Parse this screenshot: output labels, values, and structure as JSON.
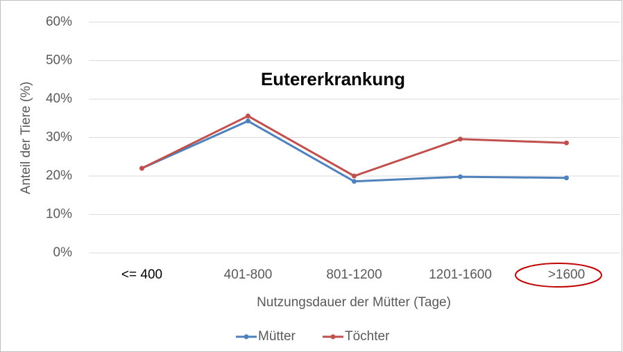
{
  "chart_data": {
    "type": "line",
    "title": "Eutererkrankung",
    "x_label": "Nutzungsdauer der Mütter (Tage)",
    "y_label": "Anteil der Tiere (%)",
    "categories": [
      "<= 400",
      "401-800",
      "801-1200",
      "1201-1600",
      ">1600"
    ],
    "series": [
      {
        "name": "Mütter",
        "color": "#4f81bd",
        "values": [
          22,
          34.3,
          18.6,
          19.8,
          19.5
        ]
      },
      {
        "name": "Töchter",
        "color": "#c0504d",
        "values": [
          22,
          35.6,
          20,
          29.6,
          28.6
        ]
      }
    ],
    "ylim": [
      0,
      60
    ],
    "yticks": [
      {
        "value": 0,
        "label": "0%"
      },
      {
        "value": 10,
        "label": "10%"
      },
      {
        "value": 20,
        "label": "20%"
      },
      {
        "value": 30,
        "label": "30%"
      },
      {
        "value": 40,
        "label": "40%"
      },
      {
        "value": 50,
        "label": "50%"
      },
      {
        "value": 60,
        "label": "60%"
      }
    ],
    "grid": true,
    "legend": "bottom"
  }
}
